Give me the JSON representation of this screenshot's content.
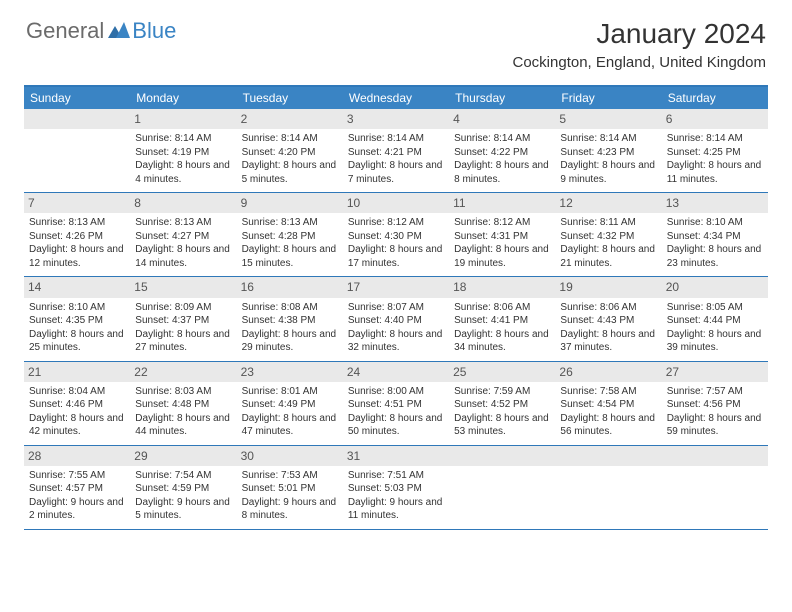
{
  "brand": {
    "part1": "General",
    "part2": "Blue"
  },
  "title": "January 2024",
  "location": "Cockington, England, United Kingdom",
  "colors": {
    "header_bg": "#3a84c4",
    "rule": "#2f78b9",
    "daynum_bg": "#e9e9e9",
    "text": "#333333",
    "logo_gray": "#6b6b6b"
  },
  "weekdays": [
    "Sunday",
    "Monday",
    "Tuesday",
    "Wednesday",
    "Thursday",
    "Friday",
    "Saturday"
  ],
  "weeks": [
    [
      {
        "n": "",
        "lines": []
      },
      {
        "n": "1",
        "lines": [
          "Sunrise: 8:14 AM",
          "Sunset: 4:19 PM",
          "Daylight: 8 hours and 4 minutes."
        ]
      },
      {
        "n": "2",
        "lines": [
          "Sunrise: 8:14 AM",
          "Sunset: 4:20 PM",
          "Daylight: 8 hours and 5 minutes."
        ]
      },
      {
        "n": "3",
        "lines": [
          "Sunrise: 8:14 AM",
          "Sunset: 4:21 PM",
          "Daylight: 8 hours and 7 minutes."
        ]
      },
      {
        "n": "4",
        "lines": [
          "Sunrise: 8:14 AM",
          "Sunset: 4:22 PM",
          "Daylight: 8 hours and 8 minutes."
        ]
      },
      {
        "n": "5",
        "lines": [
          "Sunrise: 8:14 AM",
          "Sunset: 4:23 PM",
          "Daylight: 8 hours and 9 minutes."
        ]
      },
      {
        "n": "6",
        "lines": [
          "Sunrise: 8:14 AM",
          "Sunset: 4:25 PM",
          "Daylight: 8 hours and 11 minutes."
        ]
      }
    ],
    [
      {
        "n": "7",
        "lines": [
          "Sunrise: 8:13 AM",
          "Sunset: 4:26 PM",
          "Daylight: 8 hours and 12 minutes."
        ]
      },
      {
        "n": "8",
        "lines": [
          "Sunrise: 8:13 AM",
          "Sunset: 4:27 PM",
          "Daylight: 8 hours and 14 minutes."
        ]
      },
      {
        "n": "9",
        "lines": [
          "Sunrise: 8:13 AM",
          "Sunset: 4:28 PM",
          "Daylight: 8 hours and 15 minutes."
        ]
      },
      {
        "n": "10",
        "lines": [
          "Sunrise: 8:12 AM",
          "Sunset: 4:30 PM",
          "Daylight: 8 hours and 17 minutes."
        ]
      },
      {
        "n": "11",
        "lines": [
          "Sunrise: 8:12 AM",
          "Sunset: 4:31 PM",
          "Daylight: 8 hours and 19 minutes."
        ]
      },
      {
        "n": "12",
        "lines": [
          "Sunrise: 8:11 AM",
          "Sunset: 4:32 PM",
          "Daylight: 8 hours and 21 minutes."
        ]
      },
      {
        "n": "13",
        "lines": [
          "Sunrise: 8:10 AM",
          "Sunset: 4:34 PM",
          "Daylight: 8 hours and 23 minutes."
        ]
      }
    ],
    [
      {
        "n": "14",
        "lines": [
          "Sunrise: 8:10 AM",
          "Sunset: 4:35 PM",
          "Daylight: 8 hours and 25 minutes."
        ]
      },
      {
        "n": "15",
        "lines": [
          "Sunrise: 8:09 AM",
          "Sunset: 4:37 PM",
          "Daylight: 8 hours and 27 minutes."
        ]
      },
      {
        "n": "16",
        "lines": [
          "Sunrise: 8:08 AM",
          "Sunset: 4:38 PM",
          "Daylight: 8 hours and 29 minutes."
        ]
      },
      {
        "n": "17",
        "lines": [
          "Sunrise: 8:07 AM",
          "Sunset: 4:40 PM",
          "Daylight: 8 hours and 32 minutes."
        ]
      },
      {
        "n": "18",
        "lines": [
          "Sunrise: 8:06 AM",
          "Sunset: 4:41 PM",
          "Daylight: 8 hours and 34 minutes."
        ]
      },
      {
        "n": "19",
        "lines": [
          "Sunrise: 8:06 AM",
          "Sunset: 4:43 PM",
          "Daylight: 8 hours and 37 minutes."
        ]
      },
      {
        "n": "20",
        "lines": [
          "Sunrise: 8:05 AM",
          "Sunset: 4:44 PM",
          "Daylight: 8 hours and 39 minutes."
        ]
      }
    ],
    [
      {
        "n": "21",
        "lines": [
          "Sunrise: 8:04 AM",
          "Sunset: 4:46 PM",
          "Daylight: 8 hours and 42 minutes."
        ]
      },
      {
        "n": "22",
        "lines": [
          "Sunrise: 8:03 AM",
          "Sunset: 4:48 PM",
          "Daylight: 8 hours and 44 minutes."
        ]
      },
      {
        "n": "23",
        "lines": [
          "Sunrise: 8:01 AM",
          "Sunset: 4:49 PM",
          "Daylight: 8 hours and 47 minutes."
        ]
      },
      {
        "n": "24",
        "lines": [
          "Sunrise: 8:00 AM",
          "Sunset: 4:51 PM",
          "Daylight: 8 hours and 50 minutes."
        ]
      },
      {
        "n": "25",
        "lines": [
          "Sunrise: 7:59 AM",
          "Sunset: 4:52 PM",
          "Daylight: 8 hours and 53 minutes."
        ]
      },
      {
        "n": "26",
        "lines": [
          "Sunrise: 7:58 AM",
          "Sunset: 4:54 PM",
          "Daylight: 8 hours and 56 minutes."
        ]
      },
      {
        "n": "27",
        "lines": [
          "Sunrise: 7:57 AM",
          "Sunset: 4:56 PM",
          "Daylight: 8 hours and 59 minutes."
        ]
      }
    ],
    [
      {
        "n": "28",
        "lines": [
          "Sunrise: 7:55 AM",
          "Sunset: 4:57 PM",
          "Daylight: 9 hours and 2 minutes."
        ]
      },
      {
        "n": "29",
        "lines": [
          "Sunrise: 7:54 AM",
          "Sunset: 4:59 PM",
          "Daylight: 9 hours and 5 minutes."
        ]
      },
      {
        "n": "30",
        "lines": [
          "Sunrise: 7:53 AM",
          "Sunset: 5:01 PM",
          "Daylight: 9 hours and 8 minutes."
        ]
      },
      {
        "n": "31",
        "lines": [
          "Sunrise: 7:51 AM",
          "Sunset: 5:03 PM",
          "Daylight: 9 hours and 11 minutes."
        ]
      },
      {
        "n": "",
        "lines": []
      },
      {
        "n": "",
        "lines": []
      },
      {
        "n": "",
        "lines": []
      }
    ]
  ]
}
